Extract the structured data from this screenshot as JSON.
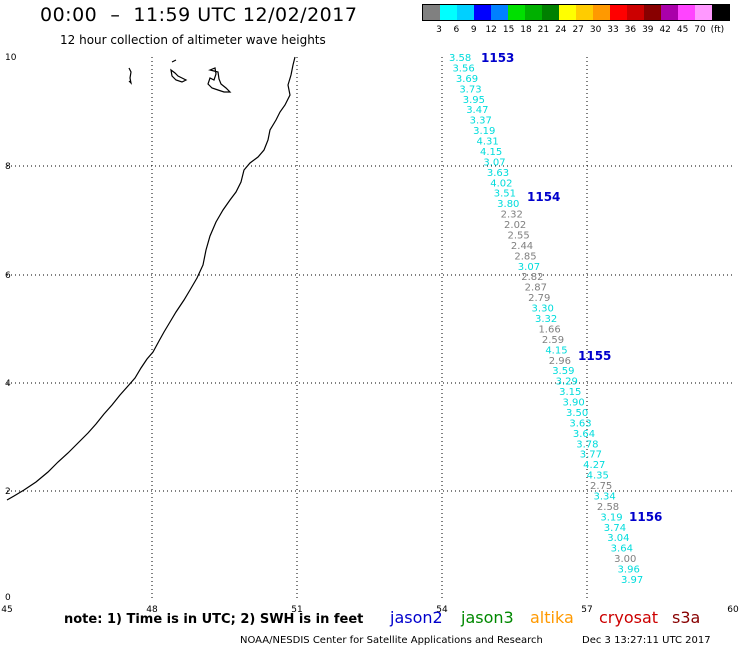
{
  "header": {
    "title": "00:00  –  11:59 UTC 12/02/2017",
    "subtitle": "12 hour collection of altimeter wave heights"
  },
  "scale": {
    "colors": [
      "#808080",
      "#00ffff",
      "#00d0ff",
      "#0000ff",
      "#0080ff",
      "#00e000",
      "#00b000",
      "#008000",
      "#ffff00",
      "#ffcc00",
      "#ff9900",
      "#ff0000",
      "#cc0000",
      "#880000",
      "#aa00aa",
      "#ff44ff",
      "#ff99ff",
      "#000000"
    ],
    "labels": [
      "3",
      "6",
      "9",
      "12",
      "15",
      "18",
      "21",
      "24",
      "27",
      "30",
      "33",
      "36",
      "39",
      "42",
      "45",
      "70",
      "(ft)"
    ]
  },
  "map": {
    "x_ticks": [
      "45",
      "48",
      "51",
      "54",
      "57",
      "60"
    ],
    "y_ticks": [
      "0",
      "2",
      "4",
      "6",
      "8",
      "10"
    ],
    "passes": [
      {
        "label": "1153",
        "color": "#0000cc"
      },
      {
        "label": "1154",
        "color": "#0000cc"
      },
      {
        "label": "1155",
        "color": "#0000cc"
      },
      {
        "label": "1156",
        "color": "#0000cc"
      }
    ],
    "measurements": [
      {
        "v": "3.58",
        "c": "#00dcdc"
      },
      {
        "v": "3.56",
        "c": "#00dcdc"
      },
      {
        "v": "3.69",
        "c": "#00dcdc"
      },
      {
        "v": "3.73",
        "c": "#00dcdc"
      },
      {
        "v": "3.95",
        "c": "#00dcdc"
      },
      {
        "v": "3.47",
        "c": "#00dcdc"
      },
      {
        "v": "3.37",
        "c": "#00dcdc"
      },
      {
        "v": "3.19",
        "c": "#00dcdc"
      },
      {
        "v": "4.31",
        "c": "#00dcdc"
      },
      {
        "v": "4.15",
        "c": "#00dcdc"
      },
      {
        "v": "3.07",
        "c": "#00dcdc"
      },
      {
        "v": "3.63",
        "c": "#00dcdc"
      },
      {
        "v": "4.02",
        "c": "#00dcdc"
      },
      {
        "v": "3.51",
        "c": "#00dcdc"
      },
      {
        "v": "3.80",
        "c": "#00dcdc"
      },
      {
        "v": "2.32",
        "c": "#808080"
      },
      {
        "v": "2.02",
        "c": "#808080"
      },
      {
        "v": "2.55",
        "c": "#808080"
      },
      {
        "v": "2.44",
        "c": "#808080"
      },
      {
        "v": "2.85",
        "c": "#808080"
      },
      {
        "v": "3.07",
        "c": "#00dcdc"
      },
      {
        "v": "2.82",
        "c": "#808080"
      },
      {
        "v": "2.87",
        "c": "#808080"
      },
      {
        "v": "2.79",
        "c": "#808080"
      },
      {
        "v": "3.30",
        "c": "#00dcdc"
      },
      {
        "v": "3.32",
        "c": "#00dcdc"
      },
      {
        "v": "1.66",
        "c": "#808080"
      },
      {
        "v": "2.59",
        "c": "#808080"
      },
      {
        "v": "4.15",
        "c": "#00dcdc"
      },
      {
        "v": "2.96",
        "c": "#808080"
      },
      {
        "v": "3.59",
        "c": "#00dcdc"
      },
      {
        "v": "3.29",
        "c": "#00dcdc"
      },
      {
        "v": "3.15",
        "c": "#00dcdc"
      },
      {
        "v": "3.90",
        "c": "#00dcdc"
      },
      {
        "v": "3.50",
        "c": "#00dcdc"
      },
      {
        "v": "3.63",
        "c": "#00dcdc"
      },
      {
        "v": "3.64",
        "c": "#00dcdc"
      },
      {
        "v": "3.78",
        "c": "#00dcdc"
      },
      {
        "v": "3.77",
        "c": "#00dcdc"
      },
      {
        "v": "4.27",
        "c": "#00dcdc"
      },
      {
        "v": "4.35",
        "c": "#00dcdc"
      },
      {
        "v": "2.75",
        "c": "#808080"
      },
      {
        "v": "3.34",
        "c": "#00dcdc"
      },
      {
        "v": "2.58",
        "c": "#808080"
      },
      {
        "v": "3.19",
        "c": "#00dcdc"
      },
      {
        "v": "3.74",
        "c": "#00dcdc"
      },
      {
        "v": "3.04",
        "c": "#00dcdc"
      },
      {
        "v": "3.64",
        "c": "#00dcdc"
      },
      {
        "v": "3.00",
        "c": "#808080"
      },
      {
        "v": "3.96",
        "c": "#00dcdc"
      },
      {
        "v": "3.97",
        "c": "#00dcdc"
      }
    ]
  },
  "footer": {
    "note": "note: 1) Time is in UTC; 2) SWH is in feet",
    "satellites": [
      {
        "name": "jason2",
        "color": "#0000cc"
      },
      {
        "name": "jason3",
        "color": "#008800"
      },
      {
        "name": "altika",
        "color": "#ff9900"
      },
      {
        "name": "cryosat",
        "color": "#cc0000"
      },
      {
        "name": "s3a",
        "color": "#880000"
      }
    ],
    "credit": "NOAA/NESDIS Center for Satellite Applications and Research",
    "timestamp": "Dec  3 13:27:11 UTC 2017"
  }
}
